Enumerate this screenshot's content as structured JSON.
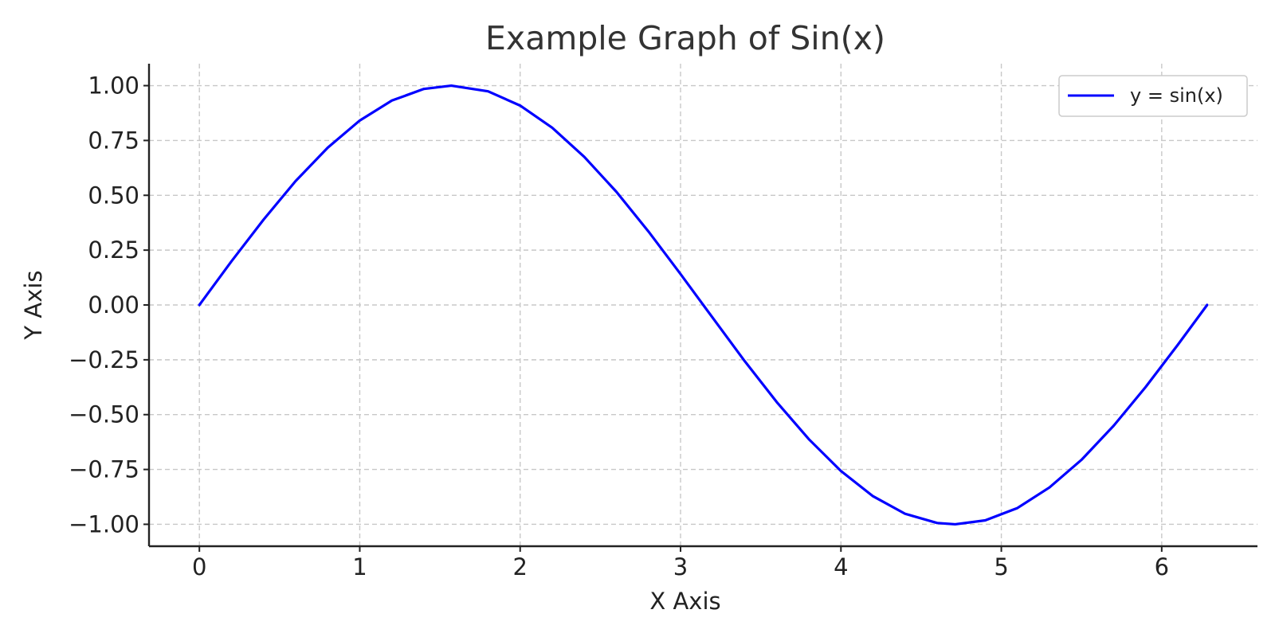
{
  "chart_data": {
    "type": "line",
    "title": "Example Graph of Sin(x)",
    "xlabel": "X Axis",
    "ylabel": "Y Axis",
    "xlim": [
      -0.314,
      6.597
    ],
    "ylim": [
      -1.1,
      1.1
    ],
    "x_ticks": [
      0,
      1,
      2,
      3,
      4,
      5,
      6
    ],
    "x_tick_labels": [
      "0",
      "1",
      "2",
      "3",
      "4",
      "5",
      "6"
    ],
    "y_ticks": [
      1.0,
      0.75,
      0.5,
      0.25,
      0.0,
      -0.25,
      -0.5,
      -0.75,
      -1.0
    ],
    "y_tick_labels": [
      "1.00",
      "0.75",
      "0.50",
      "0.25",
      "0.00",
      "−0.25",
      "−0.50",
      "−0.75",
      "−1.00"
    ],
    "grid": true,
    "legend_position": "top-right",
    "series": [
      {
        "name": "y = sin(x)",
        "color": "#0000ff",
        "x": [
          0.0,
          0.2,
          0.4,
          0.6,
          0.8,
          1.0,
          1.2,
          1.4,
          1.5708,
          1.8,
          2.0,
          2.2,
          2.4,
          2.6,
          2.8,
          3.0,
          3.1416,
          3.4,
          3.6,
          3.8,
          4.0,
          4.2,
          4.4,
          4.6,
          4.7124,
          4.9,
          5.1,
          5.3,
          5.5,
          5.7,
          5.9,
          6.1,
          6.2832
        ],
        "y": [
          0.0,
          0.199,
          0.389,
          0.565,
          0.717,
          0.841,
          0.932,
          0.985,
          1.0,
          0.974,
          0.909,
          0.808,
          0.675,
          0.516,
          0.335,
          0.141,
          0.0,
          -0.256,
          -0.443,
          -0.612,
          -0.757,
          -0.872,
          -0.952,
          -0.994,
          -1.0,
          -0.982,
          -0.926,
          -0.832,
          -0.706,
          -0.551,
          -0.374,
          -0.182,
          0.0
        ]
      }
    ]
  }
}
